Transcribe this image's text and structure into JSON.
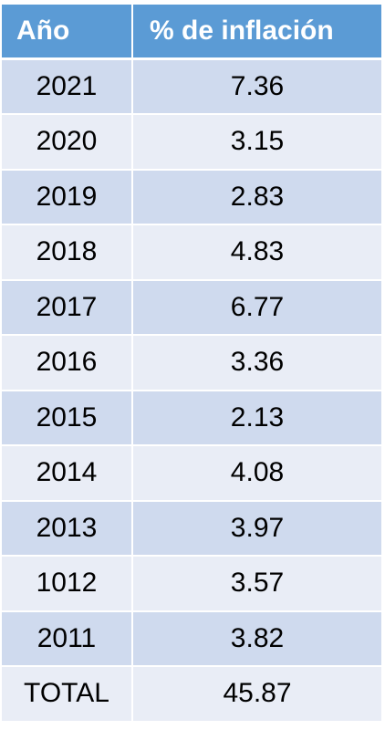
{
  "table": {
    "headers": [
      "Año",
      "% de inflación"
    ],
    "rows": [
      {
        "year": "2021",
        "value": "7.36"
      },
      {
        "year": "2020",
        "value": "3.15"
      },
      {
        "year": "2019",
        "value": "2.83"
      },
      {
        "year": "2018",
        "value": "4.83"
      },
      {
        "year": "2017",
        "value": "6.77"
      },
      {
        "year": "2016",
        "value": "3.36"
      },
      {
        "year": "2015",
        "value": "2.13"
      },
      {
        "year": "2014",
        "value": "4.08"
      },
      {
        "year": "2013",
        "value": "3.97"
      },
      {
        "year": "1012",
        "value": "3.57"
      },
      {
        "year": "2011",
        "value": "3.82"
      },
      {
        "year": "TOTAL",
        "value": "45.87"
      }
    ]
  },
  "colors": {
    "header_bg": "#5b9bd5",
    "row_dark": "#cfdaee",
    "row_light": "#e9edf6"
  }
}
